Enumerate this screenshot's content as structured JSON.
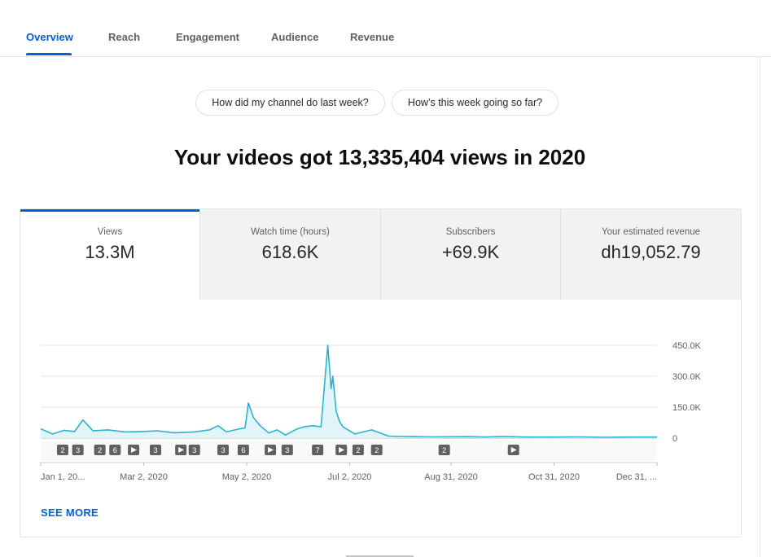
{
  "tabs": [
    {
      "label": "Overview",
      "active": true
    },
    {
      "label": "Reach"
    },
    {
      "label": "Engagement"
    },
    {
      "label": "Audience"
    },
    {
      "label": "Revenue"
    }
  ],
  "chips": [
    "How did my channel do last week?",
    "How’s this week going so far?"
  ],
  "headline": "Your videos got 13,335,404 views in 2020",
  "metrics": [
    {
      "label": "Views",
      "value": "13.3M",
      "active": true
    },
    {
      "label": "Watch time (hours)",
      "value": "618.6K"
    },
    {
      "label": "Subscribers",
      "value": "+69.9K"
    },
    {
      "label": "Your estimated revenue",
      "value": "dh19,052.79"
    }
  ],
  "see_more": "SEE MORE",
  "colors": {
    "accent": "#065fd4",
    "line": "#2bb3cf",
    "fill": "#e1f4f8"
  },
  "chart_data": {
    "type": "area",
    "series": [
      {
        "x": [
          "2020-01-01",
          "2020-01-08",
          "2020-01-15",
          "2020-01-21",
          "2020-01-26",
          "2020-02-01",
          "2020-02-10",
          "2020-02-20",
          "2020-03-01",
          "2020-03-10",
          "2020-03-20",
          "2020-04-01",
          "2020-04-10",
          "2020-04-15",
          "2020-04-20",
          "2020-04-25",
          "2020-05-01",
          "2020-05-03",
          "2020-05-06",
          "2020-05-10",
          "2020-05-15",
          "2020-05-20",
          "2020-05-25",
          "2020-06-01",
          "2020-06-05",
          "2020-06-10",
          "2020-06-15",
          "2020-06-19",
          "2020-06-21",
          "2020-06-22",
          "2020-06-24",
          "2020-06-26",
          "2020-06-28",
          "2020-07-01",
          "2020-07-05",
          "2020-07-15",
          "2020-07-20",
          "2020-07-25",
          "2020-08-01",
          "2020-08-20",
          "2020-09-10",
          "2020-09-20",
          "2020-10-01",
          "2020-10-15",
          "2020-10-31",
          "2020-11-15",
          "2020-12-01",
          "2020-12-15",
          "2020-12-31"
        ],
        "y": [
          45000,
          20000,
          38000,
          32000,
          88000,
          35000,
          40000,
          30000,
          32000,
          35000,
          26000,
          30000,
          40000,
          60000,
          30000,
          40000,
          50000,
          170000,
          100000,
          60000,
          25000,
          40000,
          15000,
          45000,
          55000,
          60000,
          55000,
          450000,
          240000,
          300000,
          130000,
          80000,
          55000,
          40000,
          20000,
          40000,
          25000,
          10000,
          8000,
          6000,
          7000,
          5000,
          8000,
          5000,
          5000,
          6000,
          4000,
          5000,
          5000
        ]
      }
    ],
    "x_tick_labels": [
      "Jan 1, 20...",
      "Mar 2, 2020",
      "May 2, 2020",
      "Jul 2, 2020",
      "Aug 31, 2020",
      "Oct 31, 2020",
      "Dec 31, ..."
    ],
    "y_tick_labels": [
      "450.0K",
      "300.0K",
      "150.0K",
      "0"
    ],
    "ylim": [
      0,
      450000
    ],
    "grid": true,
    "markers": [
      {
        "date": "2020-01-14",
        "label": "2"
      },
      {
        "date": "2020-01-23",
        "label": "3"
      },
      {
        "date": "2020-02-05",
        "label": "2"
      },
      {
        "date": "2020-02-14",
        "label": "6"
      },
      {
        "date": "2020-02-25",
        "label": "play"
      },
      {
        "date": "2020-03-09",
        "label": "3"
      },
      {
        "date": "2020-03-24",
        "label": "play"
      },
      {
        "date": "2020-04-01",
        "label": "3"
      },
      {
        "date": "2020-04-18",
        "label": "3"
      },
      {
        "date": "2020-04-30",
        "label": "6"
      },
      {
        "date": "2020-05-16",
        "label": "play"
      },
      {
        "date": "2020-05-26",
        "label": "3"
      },
      {
        "date": "2020-06-13",
        "label": "7"
      },
      {
        "date": "2020-06-27",
        "label": "play"
      },
      {
        "date": "2020-07-07",
        "label": "2"
      },
      {
        "date": "2020-07-18",
        "label": "2"
      },
      {
        "date": "2020-08-27",
        "label": "2"
      },
      {
        "date": "2020-10-07",
        "label": "play"
      }
    ]
  }
}
